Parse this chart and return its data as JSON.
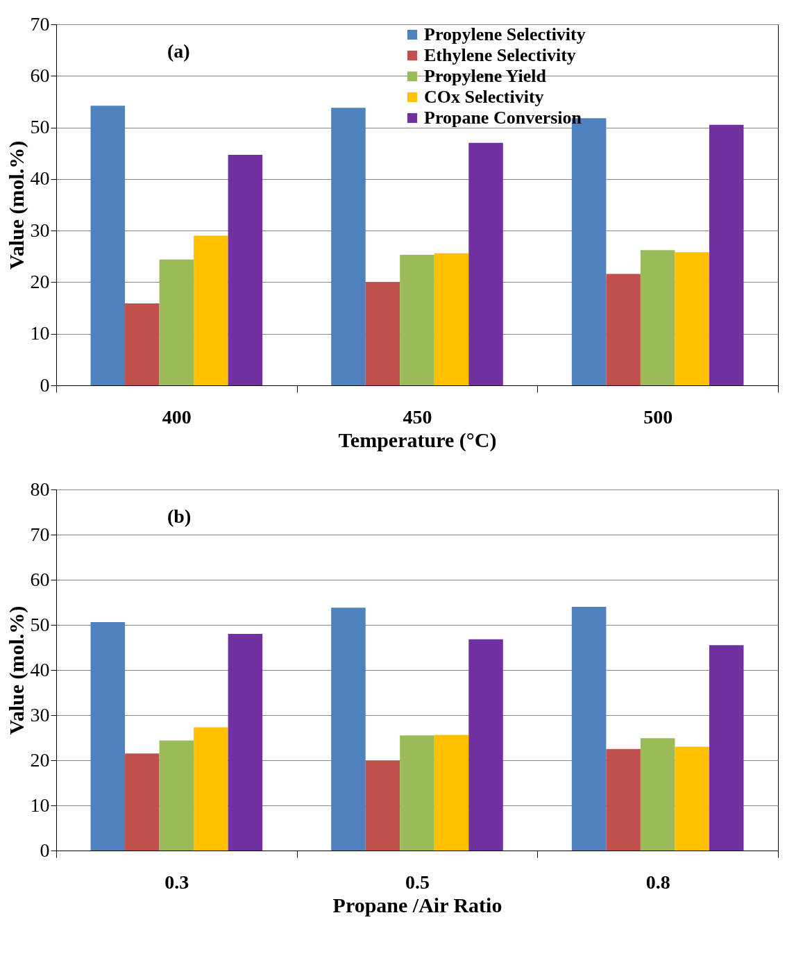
{
  "chart_data": [
    {
      "type": "bar",
      "xlabel": "Temperature (°C)",
      "ylabel": "Value (mol.%)",
      "annotations": [
        "(a)"
      ],
      "categories": [
        "400",
        "450",
        "500"
      ],
      "series": [
        {
          "name": "Propylene Selectivity",
          "color": "#4f81bd",
          "values": [
            54.2,
            53.8,
            51.8
          ]
        },
        {
          "name": "Ethylene Selectivity",
          "color": "#c0504d",
          "values": [
            15.9,
            20.0,
            21.6
          ]
        },
        {
          "name": "Propylene Yield",
          "color": "#9bbb59",
          "values": [
            24.4,
            25.3,
            26.2
          ]
        },
        {
          "name": "COx Selectivity",
          "color": "#ffc000",
          "values": [
            29.0,
            25.6,
            25.8
          ]
        },
        {
          "name": "Propane Conversion",
          "color": "#7030a0",
          "values": [
            44.7,
            47.0,
            50.5
          ]
        }
      ],
      "ylim": [
        0,
        70
      ],
      "yticks": [
        0,
        10,
        20,
        30,
        40,
        50,
        60,
        70
      ],
      "grid": "y",
      "legend": "top right"
    },
    {
      "type": "bar",
      "xlabel": "Propane /Air Ratio",
      "ylabel": "Value (mol.%)",
      "annotations": [
        "(b)"
      ],
      "categories": [
        "0.3",
        "0.5",
        "0.8"
      ],
      "series": [
        {
          "name": "Propylene Selectivity",
          "color": "#4f81bd",
          "values": [
            50.6,
            53.8,
            54.0
          ]
        },
        {
          "name": "Ethylene Selectivity",
          "color": "#c0504d",
          "values": [
            21.5,
            19.9,
            22.5
          ]
        },
        {
          "name": "Propylene Yield",
          "color": "#9bbb59",
          "values": [
            24.4,
            25.5,
            24.9
          ]
        },
        {
          "name": "COx Selectivity",
          "color": "#ffc000",
          "values": [
            27.3,
            25.6,
            23.0
          ]
        },
        {
          "name": "Propane Conversion",
          "color": "#7030a0",
          "values": [
            48.0,
            46.8,
            45.5
          ]
        }
      ],
      "ylim": [
        0,
        80
      ],
      "yticks": [
        0,
        10,
        20,
        30,
        40,
        50,
        60,
        70,
        80
      ],
      "grid": "y",
      "legend": "top left"
    }
  ]
}
